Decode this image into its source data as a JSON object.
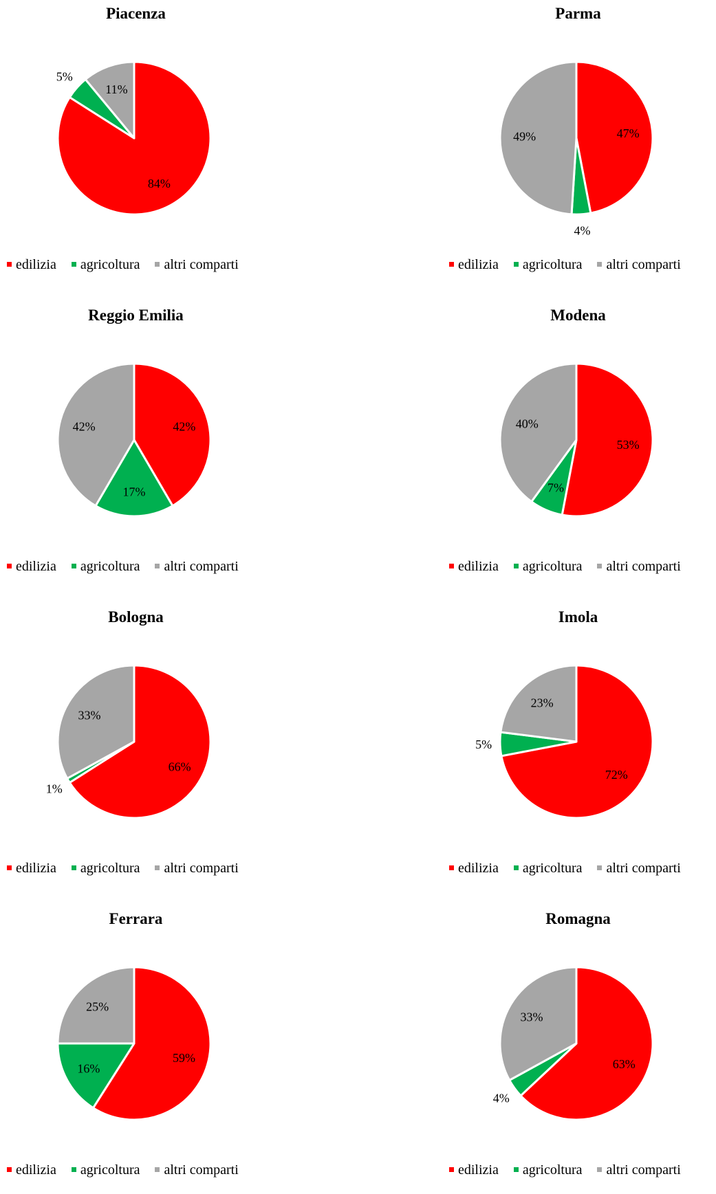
{
  "legend": [
    {
      "label": "edilizia",
      "color": "#ff0000"
    },
    {
      "label": "agricoltura",
      "color": "#00b050"
    },
    {
      "label": "altri comparti",
      "color": "#a6a6a6"
    }
  ],
  "chart_data": [
    {
      "type": "pie",
      "title": "Piacenza",
      "categories": [
        "edilizia",
        "agricoltura",
        "altri comparti"
      ],
      "values": [
        84,
        5,
        11
      ],
      "labels": [
        "84%",
        "5%",
        "11%"
      ],
      "legend_placement": "bottom"
    },
    {
      "type": "pie",
      "title": "Parma",
      "categories": [
        "edilizia",
        "agricoltura",
        "altri comparti"
      ],
      "values": [
        47,
        4,
        49
      ],
      "labels": [
        "47%",
        "4%",
        "49%"
      ],
      "legend_placement": "bottom"
    },
    {
      "type": "pie",
      "title": "Reggio Emilia",
      "categories": [
        "edilizia",
        "agricoltura",
        "altri comparti"
      ],
      "values": [
        42,
        17,
        42
      ],
      "labels": [
        "42%",
        "17%",
        "42%"
      ],
      "legend_placement": "bottom"
    },
    {
      "type": "pie",
      "title": "Modena",
      "categories": [
        "edilizia",
        "agricoltura",
        "altri comparti"
      ],
      "values": [
        53,
        7,
        40
      ],
      "labels": [
        "53%",
        "7%",
        "40%"
      ],
      "legend_placement": "bottom"
    },
    {
      "type": "pie",
      "title": "Bologna",
      "categories": [
        "edilizia",
        "agricoltura",
        "altri comparti"
      ],
      "values": [
        66,
        1,
        33
      ],
      "labels": [
        "66%",
        "1%",
        "33%"
      ],
      "legend_placement": "bottom"
    },
    {
      "type": "pie",
      "title": "Imola",
      "categories": [
        "edilizia",
        "agricoltura",
        "altri comparti"
      ],
      "values": [
        72,
        5,
        23
      ],
      "labels": [
        "72%",
        "5%",
        "23%"
      ],
      "legend_placement": "bottom"
    },
    {
      "type": "pie",
      "title": "Ferrara",
      "categories": [
        "edilizia",
        "agricoltura",
        "altri comparti"
      ],
      "values": [
        59,
        16,
        25
      ],
      "labels": [
        "59%",
        "16%",
        "25%"
      ],
      "legend_placement": "bottom"
    },
    {
      "type": "pie",
      "title": "Romagna",
      "categories": [
        "edilizia",
        "agricoltura",
        "altri comparti"
      ],
      "values": [
        63,
        4,
        33
      ],
      "labels": [
        "63%",
        "4%",
        "33%"
      ],
      "legend_placement": "bottom"
    }
  ]
}
